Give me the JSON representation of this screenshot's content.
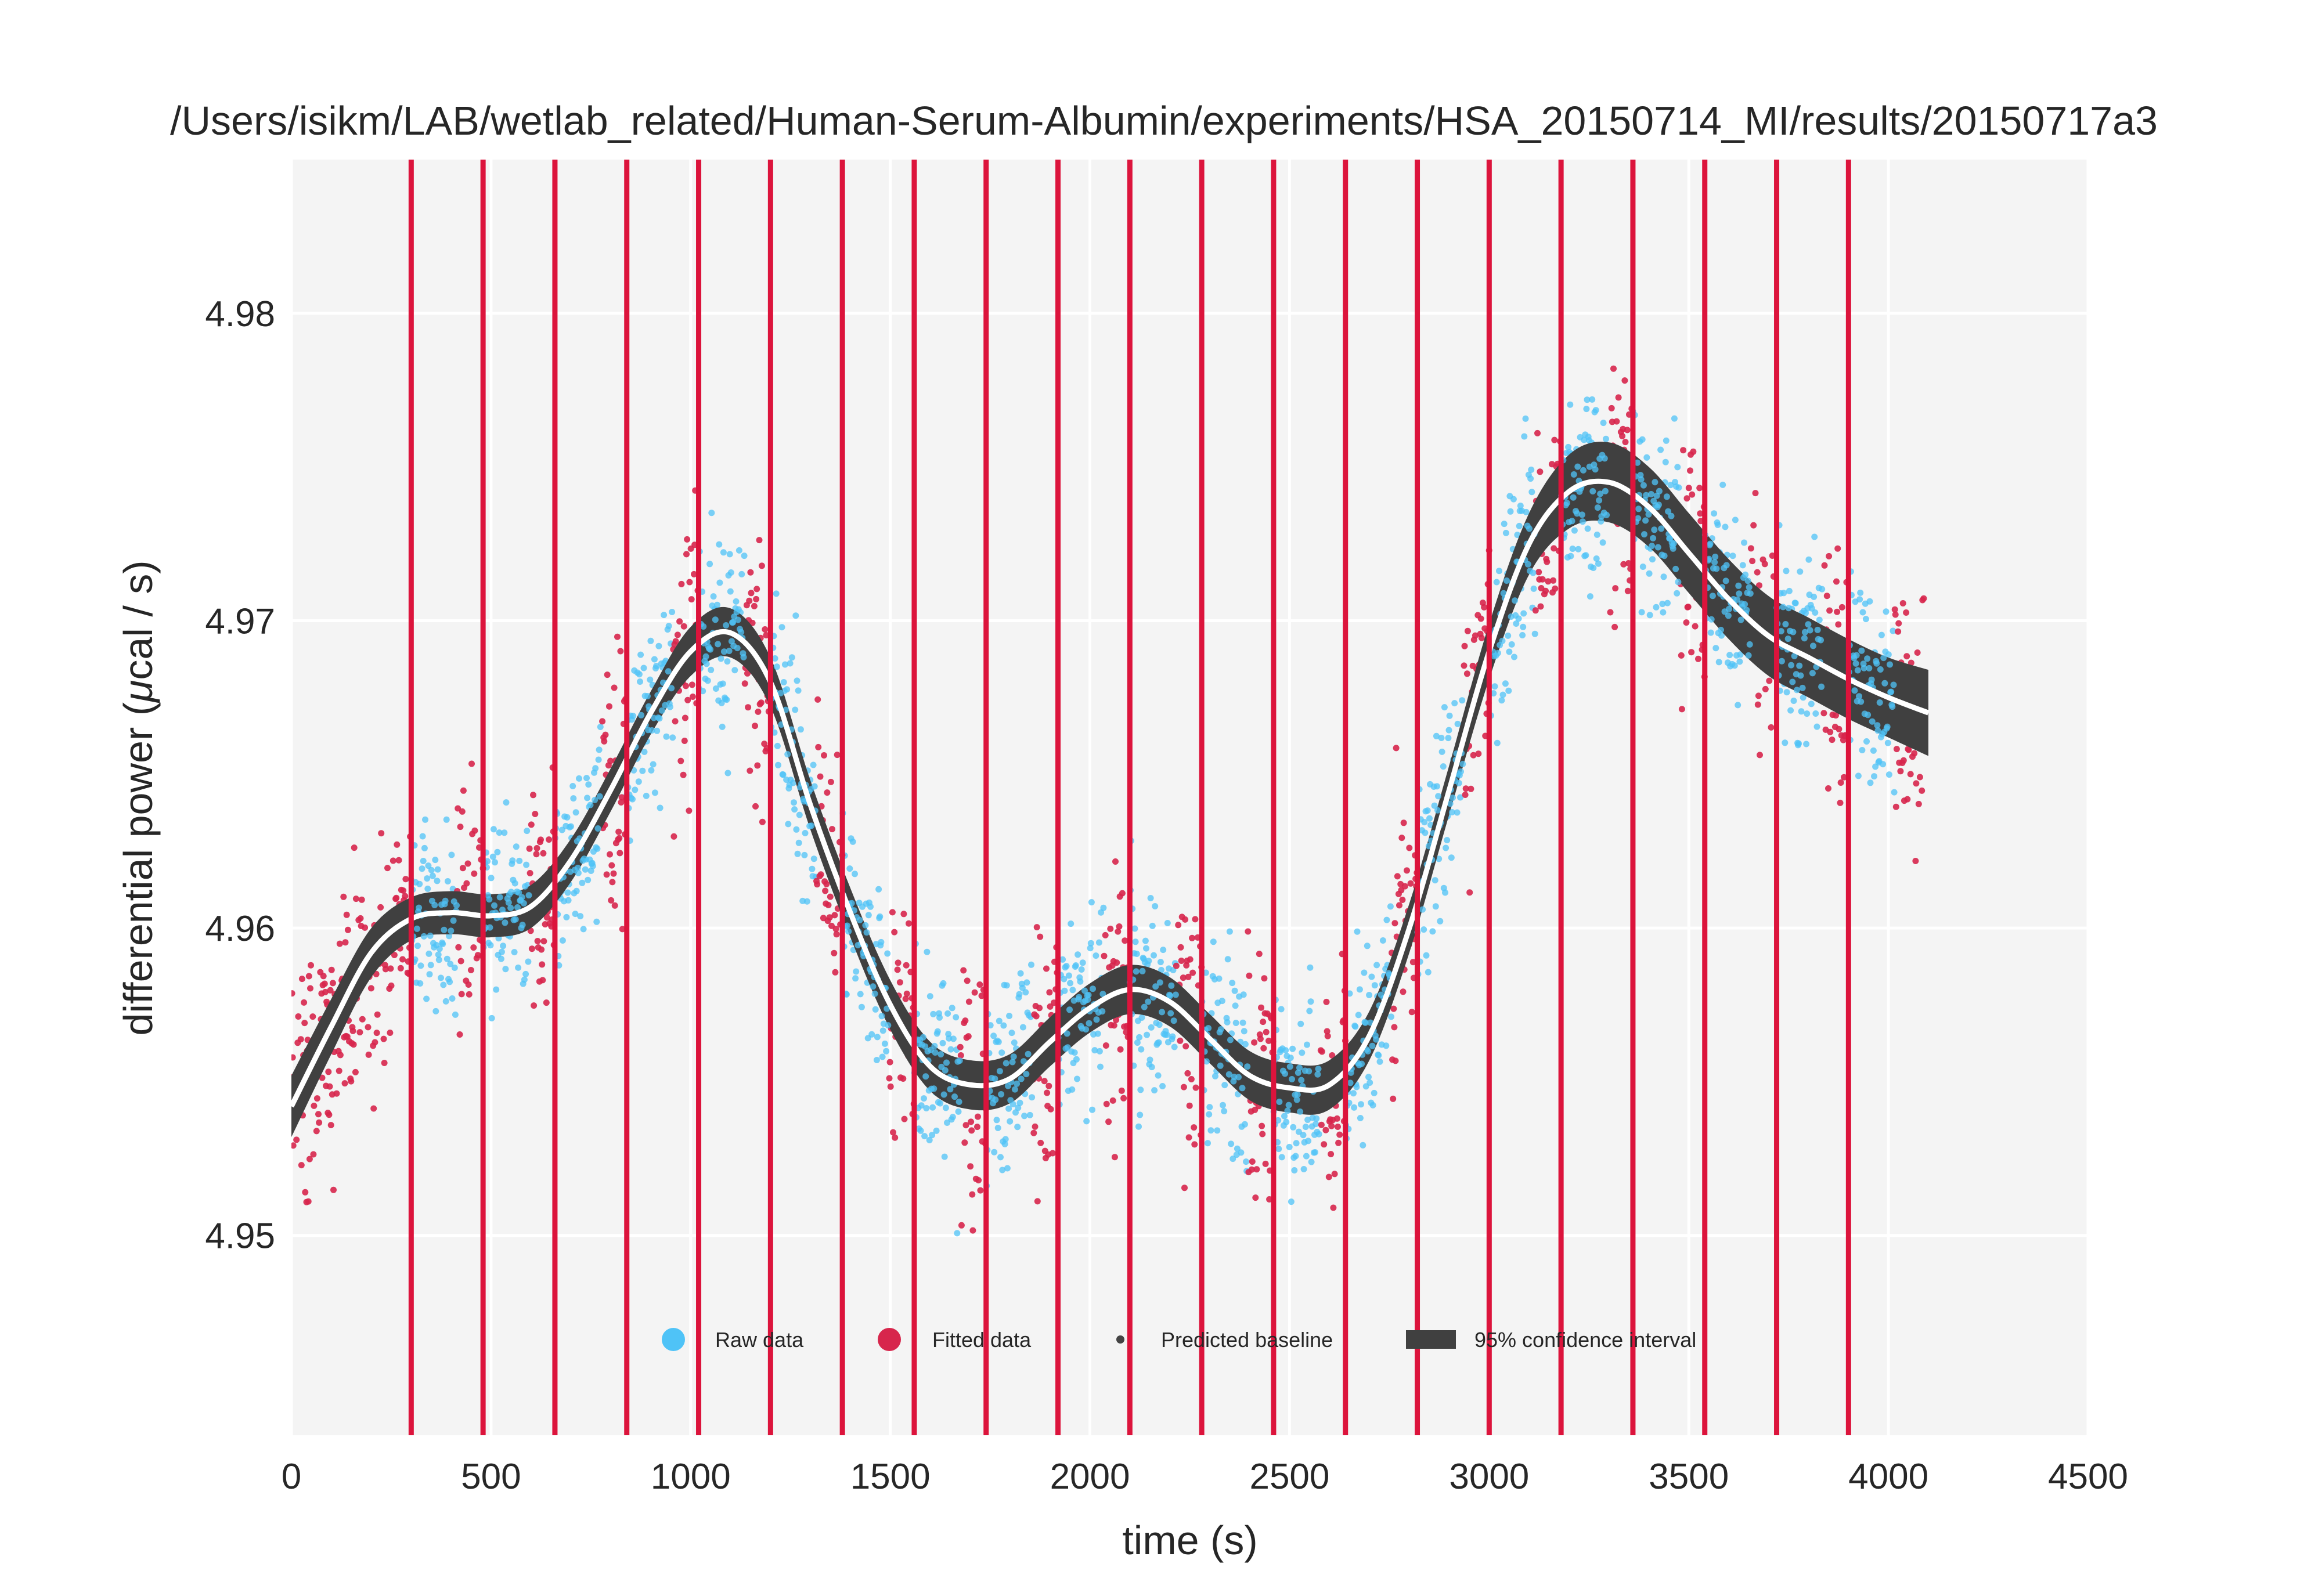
{
  "chart_data": {
    "type": "scatter",
    "title": "/Users/isikm/LAB/wetlab_related/Human-Serum-Albumin/experiments/HSA_20150714_MI/results/20150717a3",
    "xlabel": "time (s)",
    "ylabel_prefix": "differential power (",
    "ylabel_mu": "μ",
    "ylabel_suffix": "cal / s)",
    "xlim": [
      0,
      4500
    ],
    "ylim": [
      4.9435,
      4.985
    ],
    "xticks": [
      0,
      500,
      1000,
      1500,
      2000,
      2500,
      3000,
      3500,
      4000,
      4500
    ],
    "xtick_labels": [
      "0",
      "500",
      "1000",
      "1500",
      "2000",
      "2500",
      "3000",
      "3500",
      "4000",
      "4500"
    ],
    "yticks": [
      4.95,
      4.96,
      4.97,
      4.98
    ],
    "ytick_labels": [
      "4.95",
      "4.96",
      "4.97",
      "4.98"
    ],
    "grid": true,
    "legend_position": "bottom-center",
    "colors": {
      "raw": "#4fc3f7",
      "fitted": "#d7264c",
      "baseline": "#ffffff",
      "confidence": "#404040",
      "injection": "#dc143c",
      "background": "#f4f4f4"
    },
    "injection_times": [
      300,
      480,
      660,
      840,
      1020,
      1200,
      1380,
      1560,
      1740,
      1920,
      2100,
      2280,
      2460,
      2640,
      2820,
      3000,
      3180,
      3360,
      3540,
      3720,
      3900
    ],
    "baseline": {
      "x": [
        0,
        100,
        200,
        300,
        400,
        500,
        600,
        700,
        800,
        900,
        1000,
        1100,
        1200,
        1300,
        1400,
        1500,
        1600,
        1700,
        1800,
        1900,
        2000,
        2100,
        2200,
        2300,
        2400,
        2500,
        2600,
        2700,
        2800,
        2900,
        3000,
        3100,
        3200,
        3300,
        3400,
        3500,
        3600,
        3700,
        3800,
        3900,
        4000,
        4100
      ],
      "y": [
        4.9542,
        4.9568,
        4.9592,
        4.9603,
        4.9605,
        4.9604,
        4.9607,
        4.9622,
        4.9645,
        4.967,
        4.969,
        4.9696,
        4.968,
        4.964,
        4.9605,
        4.9575,
        4.9555,
        4.9549,
        4.9551,
        4.9563,
        4.9574,
        4.958,
        4.9576,
        4.9564,
        4.9552,
        4.9548,
        4.9549,
        4.9565,
        4.96,
        4.9645,
        4.969,
        4.9725,
        4.9742,
        4.9745,
        4.9737,
        4.9722,
        4.9707,
        4.9695,
        4.9688,
        4.9681,
        4.9675,
        4.967
      ],
      "ci_halfwidth": [
        0.001,
        0.0009,
        0.0008,
        0.0007,
        0.0007,
        0.0007,
        0.0007,
        0.0007,
        0.0007,
        0.0007,
        0.0008,
        0.0008,
        0.0008,
        0.0008,
        0.0008,
        0.0008,
        0.0008,
        0.0008,
        0.0008,
        0.0008,
        0.0008,
        0.0008,
        0.0008,
        0.0008,
        0.0008,
        0.0008,
        0.0008,
        0.0008,
        0.0008,
        0.0008,
        0.0009,
        0.001,
        0.0012,
        0.0013,
        0.0013,
        0.0013,
        0.0013,
        0.0013,
        0.0013,
        0.0013,
        0.0013,
        0.0014
      ]
    },
    "legend": [
      {
        "label": "Raw data",
        "kind": "raw"
      },
      {
        "label": "Fitted data",
        "kind": "fitted"
      },
      {
        "label": "Predicted baseline",
        "kind": "baseline"
      },
      {
        "label": "95% confidence interval",
        "kind": "confidence"
      }
    ]
  }
}
